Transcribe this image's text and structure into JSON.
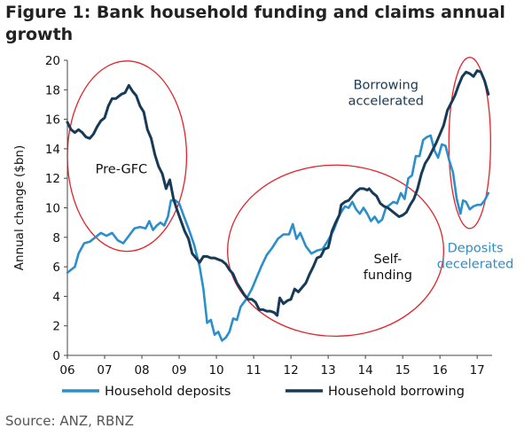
{
  "figure": {
    "title": "Figure 1: Bank household funding and claims annual growth",
    "source": "Source: ANZ, RBNZ"
  },
  "colors": {
    "deposits": "#2b8fcb",
    "borrowing": "#173a57",
    "ellipse": "#e3222b",
    "axis": "#444444",
    "title": "#222222"
  },
  "chart_data": {
    "type": "line",
    "ylabel": "Annual change ($bn)",
    "xlabel": "",
    "ylim": [
      0,
      20
    ],
    "xlim": [
      2006,
      2017.4
    ],
    "grid": false,
    "legend_position": "bottom",
    "y_ticks": [
      "0",
      "2",
      "4",
      "6",
      "8",
      "10",
      "12",
      "14",
      "16",
      "18",
      "20"
    ],
    "x_ticks": [
      "06",
      "07",
      "08",
      "09",
      "10",
      "11",
      "12",
      "13",
      "14",
      "15",
      "16",
      "17"
    ],
    "series": [
      {
        "name": "Household deposits",
        "color": "#2b8fcb",
        "points": [
          [
            2006.0,
            5.6
          ],
          [
            2006.1,
            5.8
          ],
          [
            2006.2,
            6.0
          ],
          [
            2006.3,
            6.9
          ],
          [
            2006.45,
            7.6
          ],
          [
            2006.6,
            7.7
          ],
          [
            2006.75,
            8.0
          ],
          [
            2006.9,
            8.3
          ],
          [
            2007.05,
            8.1
          ],
          [
            2007.2,
            8.3
          ],
          [
            2007.35,
            7.8
          ],
          [
            2007.5,
            7.6
          ],
          [
            2007.65,
            8.1
          ],
          [
            2007.8,
            8.6
          ],
          [
            2007.95,
            8.7
          ],
          [
            2008.1,
            8.6
          ],
          [
            2008.2,
            9.1
          ],
          [
            2008.3,
            8.5
          ],
          [
            2008.4,
            8.8
          ],
          [
            2008.5,
            9.0
          ],
          [
            2008.6,
            8.8
          ],
          [
            2008.7,
            9.4
          ],
          [
            2008.78,
            10.5
          ],
          [
            2008.9,
            10.5
          ],
          [
            2009.0,
            10.3
          ],
          [
            2009.1,
            9.6
          ],
          [
            2009.25,
            8.6
          ],
          [
            2009.4,
            7.5
          ],
          [
            2009.55,
            6.0
          ],
          [
            2009.65,
            4.5
          ],
          [
            2009.75,
            2.2
          ],
          [
            2009.85,
            2.4
          ],
          [
            2009.95,
            1.4
          ],
          [
            2010.05,
            1.6
          ],
          [
            2010.15,
            1.0
          ],
          [
            2010.25,
            1.2
          ],
          [
            2010.35,
            1.6
          ],
          [
            2010.45,
            2.5
          ],
          [
            2010.55,
            2.4
          ],
          [
            2010.65,
            3.3
          ],
          [
            2010.8,
            3.8
          ],
          [
            2010.95,
            4.5
          ],
          [
            2011.1,
            5.4
          ],
          [
            2011.2,
            6.0
          ],
          [
            2011.35,
            6.8
          ],
          [
            2011.5,
            7.3
          ],
          [
            2011.65,
            7.9
          ],
          [
            2011.8,
            8.2
          ],
          [
            2011.95,
            8.2
          ],
          [
            2012.05,
            8.9
          ],
          [
            2012.15,
            7.9
          ],
          [
            2012.25,
            8.3
          ],
          [
            2012.4,
            7.4
          ],
          [
            2012.55,
            6.9
          ],
          [
            2012.7,
            7.1
          ],
          [
            2012.85,
            7.2
          ],
          [
            2013.0,
            7.8
          ],
          [
            2013.15,
            8.5
          ],
          [
            2013.3,
            9.5
          ],
          [
            2013.45,
            10.1
          ],
          [
            2013.55,
            10.0
          ],
          [
            2013.65,
            10.4
          ],
          [
            2013.75,
            9.9
          ],
          [
            2013.85,
            9.6
          ],
          [
            2013.95,
            10.0
          ],
          [
            2014.05,
            9.6
          ],
          [
            2014.15,
            9.1
          ],
          [
            2014.25,
            9.4
          ],
          [
            2014.35,
            9.0
          ],
          [
            2014.45,
            9.2
          ],
          [
            2014.55,
            10.0
          ],
          [
            2014.65,
            10.2
          ],
          [
            2014.75,
            10.4
          ],
          [
            2014.85,
            10.3
          ],
          [
            2014.95,
            11.0
          ],
          [
            2015.05,
            10.6
          ],
          [
            2015.15,
            12.0
          ],
          [
            2015.25,
            12.2
          ],
          [
            2015.35,
            13.5
          ],
          [
            2015.45,
            13.5
          ],
          [
            2015.55,
            14.6
          ],
          [
            2015.65,
            14.8
          ],
          [
            2015.75,
            14.9
          ],
          [
            2015.85,
            13.9
          ],
          [
            2015.95,
            13.4
          ],
          [
            2016.05,
            14.3
          ],
          [
            2016.15,
            14.2
          ],
          [
            2016.25,
            13.2
          ],
          [
            2016.35,
            12.4
          ],
          [
            2016.45,
            10.6
          ],
          [
            2016.55,
            9.6
          ],
          [
            2016.62,
            10.5
          ],
          [
            2016.7,
            10.4
          ],
          [
            2016.8,
            9.9
          ],
          [
            2016.9,
            10.1
          ],
          [
            2017.0,
            10.2
          ],
          [
            2017.1,
            10.2
          ],
          [
            2017.2,
            10.5
          ],
          [
            2017.3,
            11.0
          ]
        ]
      },
      {
        "name": "Household borrowing",
        "color": "#173a57",
        "points": [
          [
            2006.0,
            15.8
          ],
          [
            2006.1,
            15.3
          ],
          [
            2006.2,
            15.1
          ],
          [
            2006.3,
            15.3
          ],
          [
            2006.4,
            15.1
          ],
          [
            2006.5,
            14.8
          ],
          [
            2006.6,
            14.7
          ],
          [
            2006.7,
            15.0
          ],
          [
            2006.8,
            15.5
          ],
          [
            2006.9,
            15.9
          ],
          [
            2007.0,
            16.1
          ],
          [
            2007.1,
            16.9
          ],
          [
            2007.2,
            17.4
          ],
          [
            2007.3,
            17.4
          ],
          [
            2007.45,
            17.7
          ],
          [
            2007.55,
            17.8
          ],
          [
            2007.65,
            18.3
          ],
          [
            2007.75,
            17.9
          ],
          [
            2007.85,
            17.6
          ],
          [
            2007.95,
            16.9
          ],
          [
            2008.05,
            16.5
          ],
          [
            2008.15,
            15.3
          ],
          [
            2008.25,
            14.7
          ],
          [
            2008.35,
            13.6
          ],
          [
            2008.45,
            12.8
          ],
          [
            2008.55,
            12.3
          ],
          [
            2008.65,
            11.3
          ],
          [
            2008.75,
            11.9
          ],
          [
            2008.85,
            10.6
          ],
          [
            2008.95,
            9.8
          ],
          [
            2009.05,
            9.1
          ],
          [
            2009.15,
            8.4
          ],
          [
            2009.25,
            7.9
          ],
          [
            2009.35,
            6.9
          ],
          [
            2009.45,
            6.6
          ],
          [
            2009.55,
            6.3
          ],
          [
            2009.65,
            6.7
          ],
          [
            2009.75,
            6.7
          ],
          [
            2009.85,
            6.6
          ],
          [
            2009.95,
            6.6
          ],
          [
            2010.05,
            6.5
          ],
          [
            2010.15,
            6.4
          ],
          [
            2010.25,
            6.2
          ],
          [
            2010.35,
            5.8
          ],
          [
            2010.45,
            5.5
          ],
          [
            2010.55,
            4.9
          ],
          [
            2010.65,
            4.5
          ],
          [
            2010.75,
            4.1
          ],
          [
            2010.85,
            3.8
          ],
          [
            2010.95,
            3.8
          ],
          [
            2011.05,
            3.6
          ],
          [
            2011.15,
            3.1
          ],
          [
            2011.25,
            3.1
          ],
          [
            2011.35,
            3.0
          ],
          [
            2011.45,
            3.0
          ],
          [
            2011.55,
            2.9
          ],
          [
            2011.63,
            2.7
          ],
          [
            2011.7,
            3.9
          ],
          [
            2011.8,
            3.5
          ],
          [
            2011.9,
            3.7
          ],
          [
            2012.0,
            3.8
          ],
          [
            2012.1,
            4.5
          ],
          [
            2012.2,
            4.3
          ],
          [
            2012.3,
            4.6
          ],
          [
            2012.4,
            4.9
          ],
          [
            2012.5,
            5.5
          ],
          [
            2012.6,
            6.0
          ],
          [
            2012.7,
            6.6
          ],
          [
            2012.8,
            6.7
          ],
          [
            2012.9,
            7.2
          ],
          [
            2013.0,
            7.3
          ],
          [
            2013.05,
            7.8
          ],
          [
            2013.1,
            8.4
          ],
          [
            2013.2,
            9.0
          ],
          [
            2013.3,
            9.5
          ],
          [
            2013.35,
            10.2
          ],
          [
            2013.45,
            10.4
          ],
          [
            2013.55,
            10.5
          ],
          [
            2013.65,
            10.8
          ],
          [
            2013.75,
            11.1
          ],
          [
            2013.85,
            11.3
          ],
          [
            2013.95,
            11.3
          ],
          [
            2014.05,
            11.2
          ],
          [
            2014.1,
            11.3
          ],
          [
            2014.2,
            11.0
          ],
          [
            2014.3,
            10.8
          ],
          [
            2014.4,
            10.3
          ],
          [
            2014.5,
            10.1
          ],
          [
            2014.6,
            10.0
          ],
          [
            2014.7,
            9.8
          ],
          [
            2014.8,
            9.6
          ],
          [
            2014.9,
            9.4
          ],
          [
            2015.0,
            9.5
          ],
          [
            2015.1,
            9.7
          ],
          [
            2015.2,
            10.2
          ],
          [
            2015.3,
            10.6
          ],
          [
            2015.4,
            11.3
          ],
          [
            2015.5,
            12.3
          ],
          [
            2015.6,
            13.0
          ],
          [
            2015.7,
            13.4
          ],
          [
            2015.8,
            13.9
          ],
          [
            2015.9,
            14.4
          ],
          [
            2016.0,
            15.0
          ],
          [
            2016.1,
            15.6
          ],
          [
            2016.2,
            16.6
          ],
          [
            2016.3,
            17.1
          ],
          [
            2016.4,
            17.6
          ],
          [
            2016.5,
            18.3
          ],
          [
            2016.6,
            18.9
          ],
          [
            2016.7,
            19.2
          ],
          [
            2016.8,
            19.1
          ],
          [
            2016.9,
            18.9
          ],
          [
            2017.0,
            19.3
          ],
          [
            2017.1,
            19.2
          ],
          [
            2017.2,
            18.6
          ],
          [
            2017.3,
            17.7
          ]
        ]
      }
    ],
    "annotations": [
      {
        "id": "pre-gfc",
        "lines": [
          "Pre-GFC"
        ],
        "x": 2007.45,
        "y": 12.35,
        "color": "#111111"
      },
      {
        "id": "self-funding",
        "lines": [
          "Self-",
          "funding"
        ],
        "x": 2014.6,
        "y": 6.25,
        "color": "#111111"
      },
      {
        "id": "borrowing-accelerated",
        "lines": [
          "Borrowing",
          "accelerated"
        ],
        "x": 2014.55,
        "y": 18.05,
        "color": "#173a57"
      },
      {
        "id": "deposits-decelerated",
        "lines": [
          "Deposits",
          "decelerated"
        ],
        "x": 2016.95,
        "y": 7.0,
        "color": "#2b8fcb"
      }
    ],
    "ellipses": [
      {
        "id": "pre-gfc-ellipse",
        "cx": 2007.6,
        "cy": 13.5,
        "rx": 1.6,
        "ry": 6.45
      },
      {
        "id": "self-funding-ellipse",
        "cx": 2013.2,
        "cy": 7.1,
        "rx": 2.9,
        "ry": 5.8
      },
      {
        "id": "recent-ellipse",
        "cx": 2016.8,
        "cy": 14.4,
        "rx": 0.56,
        "ry": 5.8
      }
    ]
  }
}
